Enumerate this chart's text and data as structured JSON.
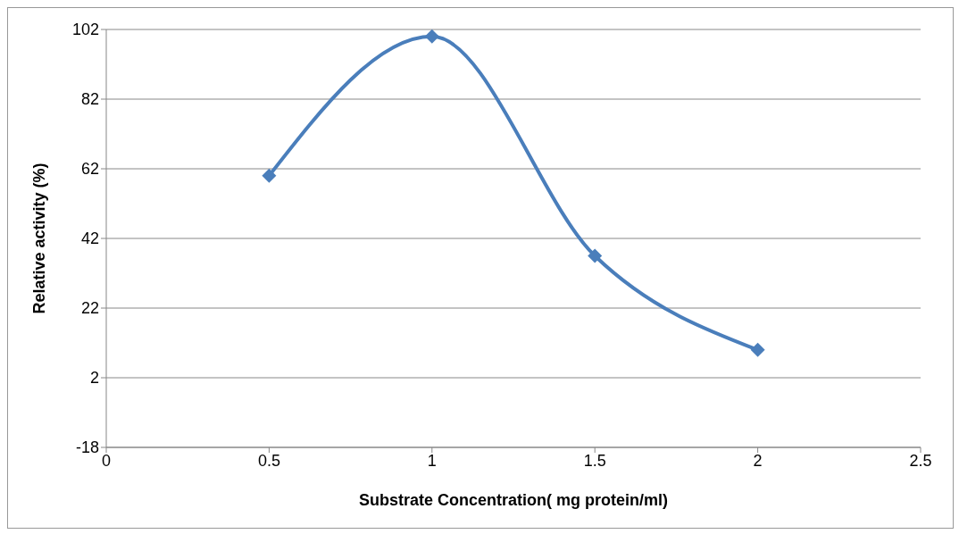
{
  "chart_data": {
    "type": "line",
    "xlabel": "Substrate Concentration( mg protein/ml)",
    "ylabel": "Relative activity (%)",
    "x": [
      0.5,
      1,
      1.5,
      2
    ],
    "series": [
      {
        "color": "#4a7ebb",
        "values": [
          60,
          100,
          37,
          10
        ]
      }
    ],
    "xlim": [
      0,
      2.5
    ],
    "xticks": [
      0,
      0.5,
      1,
      1.5,
      2,
      2.5
    ],
    "ylim": [
      -18,
      102
    ],
    "yticks": [
      -18,
      2,
      22,
      42,
      62,
      82,
      102
    ],
    "grid": "y",
    "legend": false,
    "marker": "diamond",
    "line_style": "solid"
  }
}
